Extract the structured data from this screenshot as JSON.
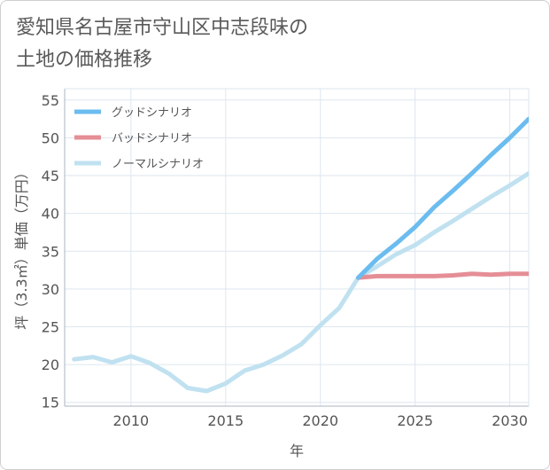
{
  "title": "愛知県名古屋市守山区中志段味の\n土地の価格推移",
  "chart_data": {
    "type": "line",
    "title": "愛知県名古屋市守山区中志段味の土地の価格推移",
    "xlabel": "年",
    "ylabel": "坪（3.3㎡）単価（万円）",
    "xlim": [
      2006.5,
      2031
    ],
    "ylim": [
      14.5,
      56.5
    ],
    "xticks": [
      2010,
      2015,
      2020,
      2025,
      2030
    ],
    "yticks": [
      15,
      20,
      25,
      30,
      35,
      40,
      45,
      50,
      55
    ],
    "grid": true,
    "legend_position": "top-left",
    "series": [
      {
        "name": "グッドシナリオ",
        "color": "#6bbcef",
        "x": [
          2022,
          2023,
          2024,
          2025,
          2026,
          2027,
          2028,
          2029,
          2030,
          2031
        ],
        "values": [
          31.5,
          34.0,
          36.0,
          38.2,
          40.8,
          43.0,
          45.3,
          47.7,
          50.0,
          52.5
        ]
      },
      {
        "name": "バッドシナリオ",
        "color": "#e58e96",
        "x": [
          2022,
          2023,
          2024,
          2025,
          2026,
          2027,
          2028,
          2029,
          2030,
          2031
        ],
        "values": [
          31.5,
          31.7,
          31.7,
          31.7,
          31.7,
          31.8,
          32.0,
          31.9,
          32.0,
          32.0
        ]
      },
      {
        "name": "ノーマルシナリオ",
        "color": "#c0e1f0",
        "x": [
          2007,
          2008,
          2009,
          2010,
          2011,
          2012,
          2013,
          2014,
          2015,
          2016,
          2017,
          2018,
          2019,
          2020,
          2021,
          2022,
          2023,
          2024,
          2025,
          2026,
          2027,
          2028,
          2029,
          2030,
          2031
        ],
        "values": [
          20.7,
          21.0,
          20.3,
          21.1,
          20.2,
          18.8,
          16.9,
          16.5,
          17.5,
          19.2,
          20.0,
          21.2,
          22.7,
          25.2,
          27.5,
          31.5,
          33.0,
          34.6,
          35.8,
          37.5,
          39.0,
          40.6,
          42.2,
          43.7,
          45.3
        ]
      }
    ]
  }
}
